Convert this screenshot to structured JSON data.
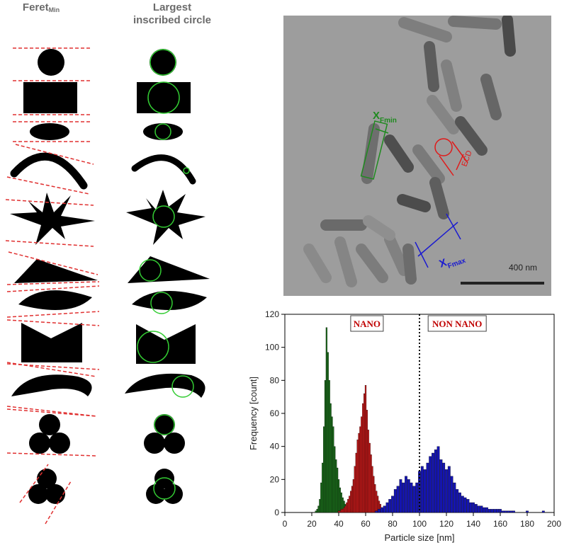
{
  "panels": {
    "col1_title": "Feret",
    "col1_sub": "Min",
    "col2_title_line1": "Largest",
    "col2_title_line2": "inscribed circle"
  },
  "tem": {
    "scale_bar": "400 nm",
    "labels": {
      "xfmin": "X",
      "xfmin_sub": "Fmin",
      "xfmax": "X",
      "xfmax_sub": "Fmax",
      "ecd": "ECD"
    },
    "colors": {
      "fmin": "#1f8a1f",
      "fmax": "#1a1ad0",
      "ecd": "#e01a1a"
    }
  },
  "chart_data": {
    "type": "bar",
    "xlabel": "Particle size [nm]",
    "ylabel": "Frequency [count]",
    "xlim": [
      0,
      200
    ],
    "ylim": [
      0,
      120
    ],
    "xticks": [
      0,
      20,
      40,
      60,
      80,
      100,
      120,
      140,
      160,
      180,
      200
    ],
    "yticks": [
      0,
      20,
      40,
      60,
      80,
      100,
      120
    ],
    "threshold": 100,
    "annotations": [
      "NANO",
      "NON NANO"
    ],
    "bin_width": 1,
    "series": [
      {
        "color": "#1a6b1a",
        "x": [
          23,
          24,
          25,
          26,
          27,
          28,
          29,
          30,
          31,
          32,
          33,
          34,
          35,
          36,
          37,
          38,
          39,
          40,
          41,
          42,
          43,
          44,
          45,
          46,
          47,
          48,
          49,
          50
        ],
        "values": [
          1,
          2,
          4,
          8,
          18,
          30,
          52,
          80,
          112,
          97,
          80,
          66,
          58,
          52,
          40,
          32,
          27,
          20,
          15,
          12,
          9,
          7,
          5,
          4,
          3,
          2,
          1,
          1
        ]
      },
      {
        "color": "#c01818",
        "x": [
          40,
          41,
          42,
          43,
          44,
          45,
          46,
          47,
          48,
          49,
          50,
          51,
          52,
          53,
          54,
          55,
          56,
          57,
          58,
          59,
          60,
          61,
          62,
          63,
          64,
          65,
          66,
          67,
          68,
          69,
          70,
          71,
          72,
          73,
          74
        ],
        "values": [
          1,
          1,
          2,
          2,
          3,
          4,
          6,
          8,
          10,
          13,
          16,
          20,
          28,
          36,
          44,
          48,
          52,
          58,
          66,
          72,
          77,
          62,
          50,
          42,
          35,
          28,
          22,
          17,
          13,
          10,
          7,
          5,
          3,
          2,
          1
        ]
      },
      {
        "color": "#1414b0",
        "x": [
          68,
          70,
          72,
          74,
          76,
          78,
          80,
          82,
          84,
          86,
          88,
          90,
          92,
          94,
          96,
          98,
          100,
          102,
          104,
          106,
          108,
          110,
          112,
          114,
          116,
          118,
          120,
          122,
          124,
          126,
          128,
          130,
          132,
          134,
          136,
          138,
          140,
          142,
          144,
          146,
          148,
          150,
          152,
          154,
          156,
          158,
          160,
          162,
          164,
          166,
          168,
          170,
          180,
          192
        ],
        "values": [
          1,
          2,
          3,
          4,
          6,
          8,
          10,
          14,
          16,
          20,
          18,
          22,
          20,
          18,
          16,
          18,
          25,
          28,
          26,
          30,
          34,
          36,
          38,
          40,
          32,
          30,
          26,
          28,
          22,
          18,
          14,
          12,
          10,
          9,
          8,
          6,
          6,
          5,
          4,
          4,
          3,
          3,
          2,
          2,
          2,
          2,
          2,
          1,
          1,
          1,
          1,
          1,
          1,
          1
        ]
      }
    ]
  }
}
